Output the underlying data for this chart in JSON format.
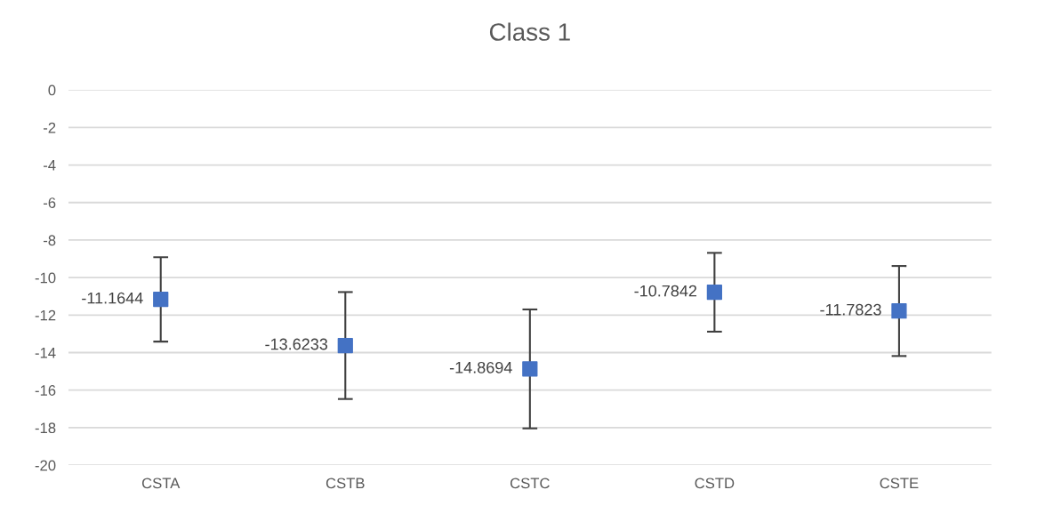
{
  "chart_data": {
    "type": "scatter",
    "title": "Class 1",
    "categories": [
      "CSTA",
      "CSTB",
      "CSTC",
      "CSTD",
      "CSTE"
    ],
    "values": [
      -11.1644,
      -13.6233,
      -14.8694,
      -10.7842,
      -11.7823
    ],
    "errors": [
      2.25,
      2.85,
      3.17,
      2.1,
      2.4
    ],
    "color": "#4472c4",
    "marker": "square",
    "data_labels": true,
    "grid": "y",
    "legend": false,
    "ylim": [
      -20,
      0
    ],
    "yticks": [
      0,
      -2,
      -4,
      -6,
      -8,
      -10,
      -12,
      -14,
      -16,
      -18,
      -20
    ]
  }
}
